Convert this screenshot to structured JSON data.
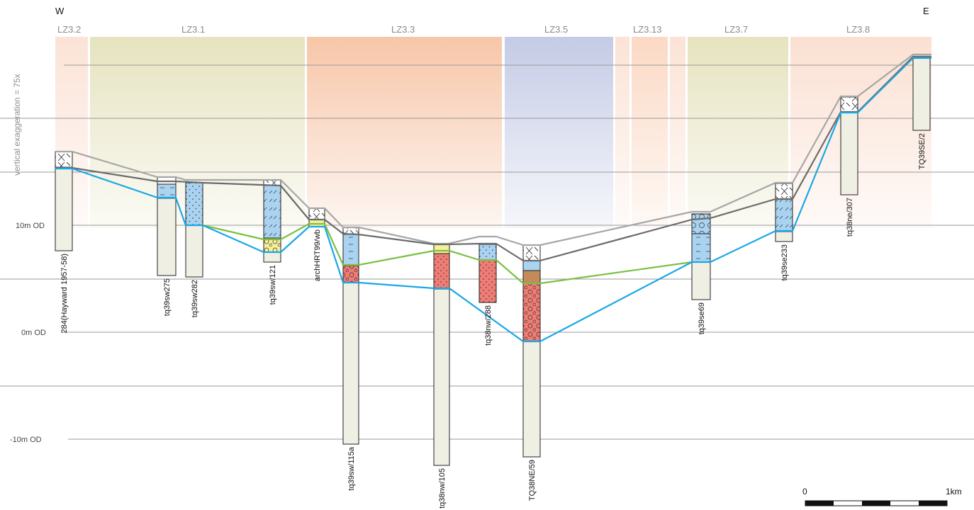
{
  "directions": {
    "west": "W",
    "east": "E"
  },
  "vertical_note": "vertical exaggeration = 75x",
  "elevation_labels": [
    {
      "label": "10m OD",
      "value": 10
    },
    {
      "label": "0m OD",
      "value": 0
    },
    {
      "label": "-10m OD",
      "value": -10
    }
  ],
  "zones": [
    {
      "label": "LZ3.2",
      "color": "#fbe3d6"
    },
    {
      "label": "LZ3.1",
      "color": "#e6e3bf"
    },
    {
      "label": "LZ3.3",
      "color": "#f7c6a8"
    },
    {
      "label": "LZ3.5",
      "color": "#c5cbe6"
    },
    {
      "label": "",
      "color": "#fbe3d6"
    },
    {
      "label": "LZ3.13",
      "color": "#fbd9c4"
    },
    {
      "label": "",
      "color": "#fbe3d6"
    },
    {
      "label": "LZ3.7",
      "color": "#e6e3bf"
    },
    {
      "label": "LZ3.8",
      "color": "#fbe0d2"
    }
  ],
  "boreholes": [
    {
      "name": "284(Hayward 1957-58)"
    },
    {
      "name": "tq39sw275"
    },
    {
      "name": "tq39sw282"
    },
    {
      "name": "tq39sw/121"
    },
    {
      "name": "archHRT99/wb"
    },
    {
      "name": "tq39sw/115a"
    },
    {
      "name": "tq38nw/105"
    },
    {
      "name": "tq38nw/288"
    },
    {
      "name": "TQ38NE/59"
    },
    {
      "name": "tq39se69"
    },
    {
      "name": "tq39se233"
    },
    {
      "name": "tq38ne/307"
    },
    {
      "name": "TQ39SE/2"
    }
  ],
  "line_colors": {
    "ground_surface": "#a6a6a6",
    "made_ground_base": "#6b6b6b",
    "alluvium_base": "#7bc043",
    "gravel_base": "#1aa7e6"
  },
  "scale_bar": {
    "start": "0",
    "end": "1km"
  }
}
